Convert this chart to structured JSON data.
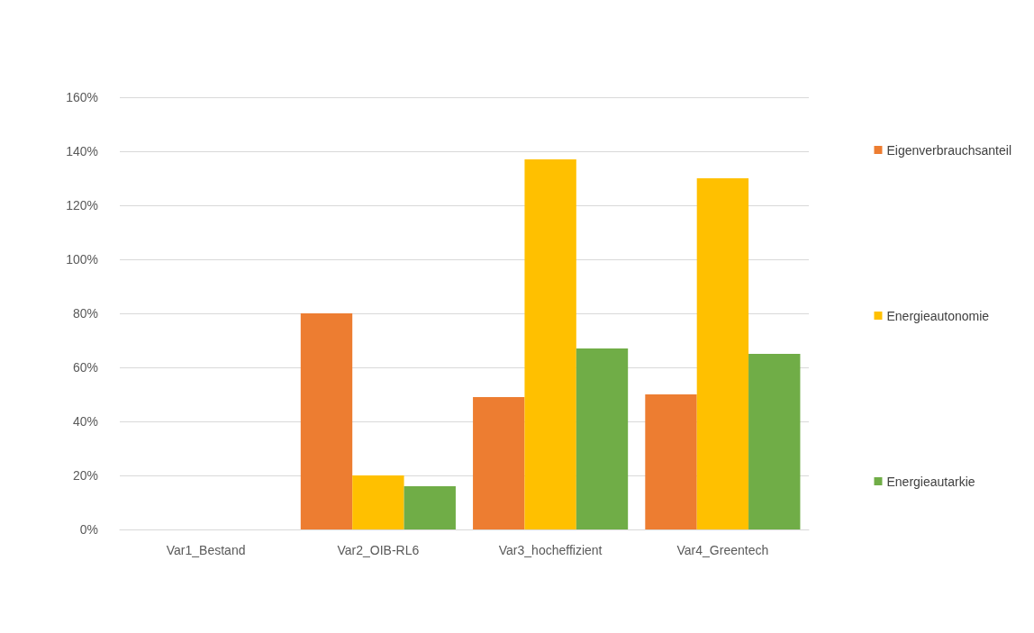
{
  "chart_data": {
    "type": "bar",
    "categories": [
      "Var1_Bestand",
      "Var2_OIB-RL6",
      "Var3_hocheffizient",
      "Var4_Greentech"
    ],
    "series": [
      {
        "name": "Eigenverbrauchsanteil",
        "color": "#ed7d31",
        "values": [
          null,
          80,
          49,
          50
        ]
      },
      {
        "name": "Energieautonomie",
        "color": "#ffc000",
        "values": [
          null,
          20,
          137,
          130
        ]
      },
      {
        "name": "Energieautarkie",
        "color": "#70ad47",
        "values": [
          null,
          16,
          67,
          65
        ]
      }
    ],
    "ylim": [
      0,
      160
    ],
    "yticks": [
      {
        "value": 0,
        "label": "0%"
      },
      {
        "value": 20,
        "label": "20%"
      },
      {
        "value": 40,
        "label": "40%"
      },
      {
        "value": 60,
        "label": "60%"
      },
      {
        "value": 80,
        "label": "80%"
      },
      {
        "value": 100,
        "label": "100%"
      },
      {
        "value": 120,
        "label": "120%"
      },
      {
        "value": 140,
        "label": "140%"
      },
      {
        "value": 160,
        "label": "160%"
      }
    ],
    "grid": "y",
    "legend": "right"
  }
}
